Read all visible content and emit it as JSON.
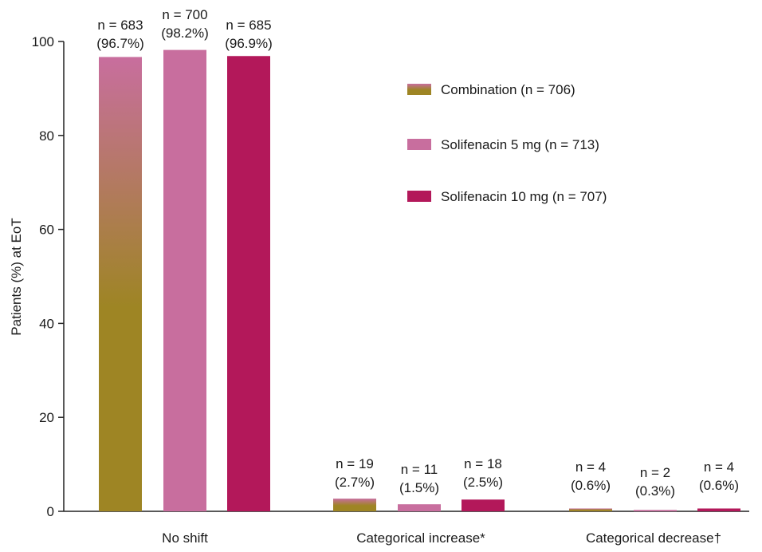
{
  "chart_data": {
    "type": "bar",
    "ylabel": "Patients (%) at EoT",
    "ylim": [
      0,
      100
    ],
    "yticks": [
      0,
      20,
      40,
      60,
      80,
      100
    ],
    "grid": false,
    "legend_position": "top-right",
    "categories": [
      "No shift",
      "Categorical increase*",
      "Categorical decrease†"
    ],
    "series": [
      {
        "name": "Combination (n = 706)",
        "color": "#9e8524",
        "color_top": "#c86e9e",
        "values": [
          96.7,
          2.7,
          0.6
        ],
        "labels_n": [
          "n = 683",
          "n = 19",
          "n = 4"
        ],
        "labels_pct": [
          "(96.7%)",
          "(2.7%)",
          "(0.6%)"
        ]
      },
      {
        "name": "Solifenacin 5 mg (n = 713)",
        "color": "#c86e9e",
        "values": [
          98.2,
          1.5,
          0.3
        ],
        "labels_n": [
          "n = 700",
          "n = 11",
          "n = 2"
        ],
        "labels_pct": [
          "(98.2%)",
          "(1.5%)",
          "(0.3%)"
        ]
      },
      {
        "name": "Solifenacin 10 mg (n = 707)",
        "color": "#b3185a",
        "values": [
          96.9,
          2.5,
          0.6
        ],
        "labels_n": [
          "n = 685",
          "n = 18",
          "n = 4"
        ],
        "labels_pct": [
          "(96.9%)",
          "(2.5%)",
          "(0.6%)"
        ]
      }
    ]
  }
}
